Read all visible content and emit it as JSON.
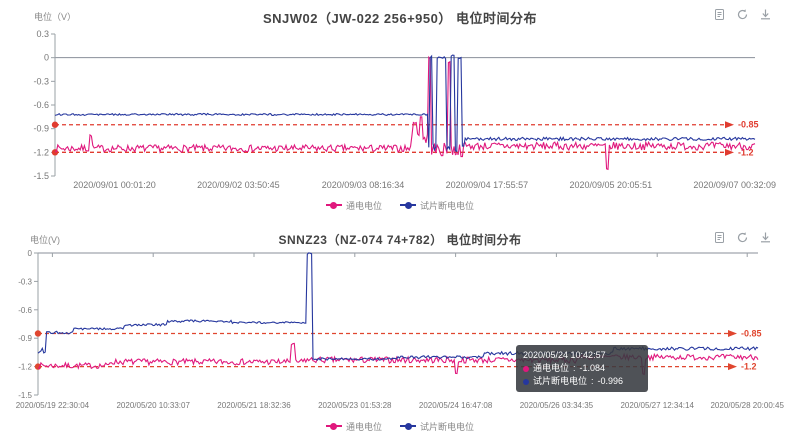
{
  "colors": {
    "on_potential": "#e0187d",
    "off_potential": "#26379e",
    "threshold": "#e03b2f",
    "icon_gray": "#9aa0a6"
  },
  "toolbox": {
    "icons": [
      "data-view-icon",
      "refresh-icon",
      "download-icon"
    ]
  },
  "chart_data": [
    {
      "type": "line",
      "title": "SNJW02（JW-022  256+950）  电位时间分布",
      "ylabel": "电位（V）",
      "xlabel": "",
      "ylim": [
        -1.5,
        0.3
      ],
      "yticks": [
        0.3,
        0,
        -0.3,
        -0.6,
        -0.9,
        -1.2,
        -1.5
      ],
      "zero_line": true,
      "top_ticks": false,
      "legend_position": "bottom",
      "threshold_color": "#e03b2f",
      "xticklabels": [
        "2020/09/01 00:01:20",
        "2020/09/02 03:50:45",
        "2020/09/03 08:16:34",
        "2020/09/04 17:55:57",
        "2020/09/05 20:05:51",
        "2020/09/07 00:32:09"
      ],
      "xtick_pos": [
        0.085,
        0.262,
        0.44,
        0.617,
        0.794,
        0.971
      ],
      "thresholds": [
        {
          "value": -0.85,
          "label": "-0.85"
        },
        {
          "value": -1.2,
          "label": "-1.2"
        }
      ],
      "series": [
        {
          "name": "通电电位",
          "color": "#e0187d",
          "segments": [
            [
              0,
              0.51,
              -1.15,
              0.045
            ],
            [
              0.51,
              0.534,
              -1.02,
              0.09
            ],
            [
              0.534,
              0.585,
              -1.17,
              0.09
            ],
            [
              0.585,
              1,
              -1.12,
              0.05
            ]
          ],
          "pulses": [
            [
              0.05,
              0.004,
              -0.98
            ],
            [
              0.512,
              0.005,
              -0.82
            ],
            [
              0.522,
              0.004,
              -0.75
            ],
            [
              0.534,
              0.003,
              0.0
            ],
            [
              0.562,
              0.004,
              -0.05
            ],
            [
              0.788,
              0.003,
              -1.42
            ]
          ]
        },
        {
          "name": "试片断电电位",
          "color": "#26379e",
          "segments": [
            [
              0,
              0.534,
              -0.72,
              0.012
            ],
            [
              0.534,
              0.585,
              -1.15,
              0.06
            ],
            [
              0.585,
              1,
              -1.03,
              0.02
            ]
          ],
          "pulses": [
            [
              0.536,
              0.004,
              0.01
            ],
            [
              0.546,
              0.013,
              0.0
            ],
            [
              0.566,
              0.006,
              0.02
            ],
            [
              0.576,
              0.005,
              0.0
            ]
          ]
        }
      ]
    },
    {
      "type": "line",
      "title": "SNNZ23（NZ-074    74+782）  电位时间分布",
      "ylabel": "电位(V)",
      "xlabel": "",
      "ylim": [
        -1.5,
        0
      ],
      "yticks": [
        0,
        -0.3,
        -0.6,
        -0.9,
        -1.2,
        -1.5
      ],
      "zero_line": true,
      "top_ticks": true,
      "legend_position": "bottom",
      "threshold_color": "#e0462f",
      "xticklabels": [
        "2020/05/19 22:30:04",
        "2020/05/20 10:33:07",
        "2020/05/21 18:32:36",
        "2020/05/23 01:53:28",
        "2020/05/24 16:47:08",
        "2020/05/26 03:34:35",
        "2020/05/27 12:34:14",
        "2020/05/28 20:00:45"
      ],
      "xtick_pos": [
        0.02,
        0.16,
        0.3,
        0.44,
        0.58,
        0.72,
        0.86,
        0.985
      ],
      "thresholds": [
        {
          "value": -0.85,
          "label": "-0.85"
        },
        {
          "value": -1.2,
          "label": "-1.2"
        }
      ],
      "series": [
        {
          "name": "通电电位",
          "color": "#e0187d",
          "segments": [
            [
              0,
              0.1,
              -1.19,
              0.03
            ],
            [
              0.1,
              0.37,
              -1.15,
              0.032
            ],
            [
              0.37,
              0.75,
              -1.13,
              0.033
            ],
            [
              0.75,
              1,
              -1.1,
              0.03
            ]
          ],
          "pulses": [
            [
              0.352,
              0.006,
              -0.97
            ],
            [
              0.58,
              0.003,
              -1.28
            ],
            [
              0.84,
              0.004,
              -1.27
            ]
          ]
        },
        {
          "name": "试片断电电位",
          "color": "#26379e",
          "segments": [
            [
              0,
              0.01,
              -1.03,
              0.03
            ],
            [
              0.01,
              0.05,
              -0.84,
              0.015
            ],
            [
              0.05,
              0.12,
              -0.8,
              0.012
            ],
            [
              0.12,
              0.18,
              -0.76,
              0.015
            ],
            [
              0.18,
              0.27,
              -0.72,
              0.012
            ],
            [
              0.27,
              0.381,
              -0.735,
              0.01
            ],
            [
              0.381,
              0.5,
              -1.12,
              0.013
            ],
            [
              0.5,
              0.62,
              -1.1,
              0.015
            ],
            [
              0.62,
              0.8,
              -1.06,
              0.018
            ],
            [
              0.8,
              1,
              -1.01,
              0.018
            ]
          ],
          "pulses": [
            [
              0.374,
              0.007,
              0.0
            ]
          ]
        }
      ],
      "tooltip": {
        "time": "2020/05/24 10:42:57",
        "rows": [
          {
            "name": "通电电位",
            "value": "-1.084",
            "color": "#e0187d"
          },
          {
            "name": "试片断电电位",
            "value": "-0.996",
            "color": "#26379e"
          }
        ]
      }
    }
  ]
}
